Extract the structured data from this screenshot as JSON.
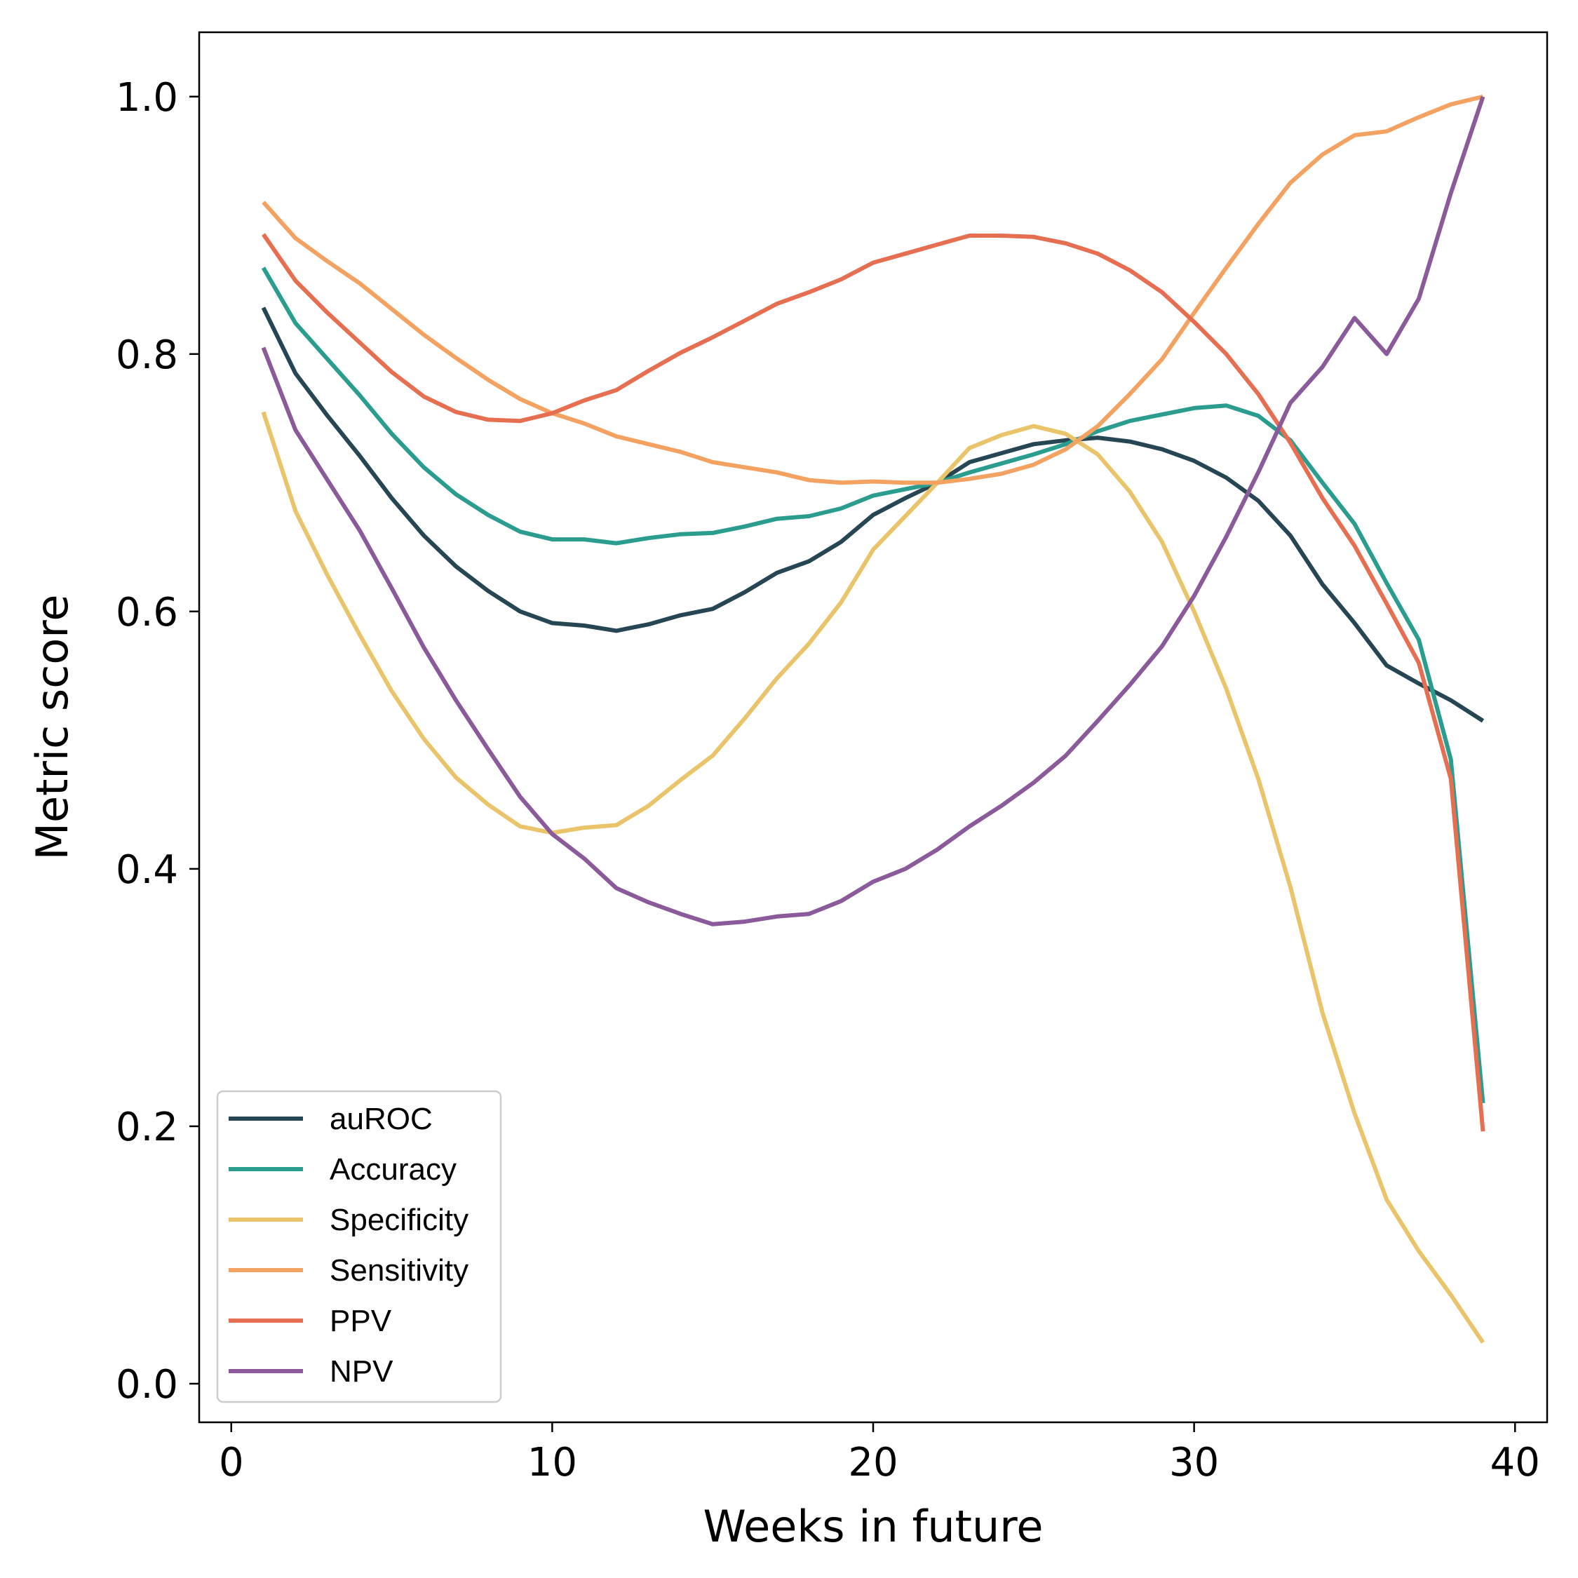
{
  "chart_data": {
    "type": "line",
    "title": "",
    "xlabel": "Weeks in future",
    "ylabel": "Metric score",
    "xlim": [
      -1,
      41
    ],
    "ylim": [
      -0.03,
      1.05
    ],
    "xticks": [
      0,
      10,
      20,
      30,
      40
    ],
    "xtick_labels": [
      "0",
      "10",
      "20",
      "30",
      "40"
    ],
    "yticks": [
      0.0,
      0.2,
      0.4,
      0.6,
      0.8,
      1.0
    ],
    "ytick_labels": [
      "0.0",
      "0.2",
      "0.4",
      "0.6",
      "0.8",
      "1.0"
    ],
    "grid": false,
    "legend_position": "lower-left",
    "x": [
      1,
      2,
      3,
      4,
      5,
      6,
      7,
      8,
      9,
      10,
      11,
      12,
      13,
      14,
      15,
      16,
      17,
      18,
      19,
      20,
      21,
      22,
      23,
      24,
      25,
      26,
      27,
      28,
      29,
      30,
      31,
      32,
      33,
      34,
      35,
      36,
      37,
      38,
      39
    ],
    "series": [
      {
        "name": "auROC",
        "color": "#264653",
        "values": [
          0.836,
          0.785,
          0.752,
          0.721,
          0.688,
          0.659,
          0.635,
          0.616,
          0.6,
          0.591,
          0.589,
          0.585,
          0.59,
          0.597,
          0.602,
          0.615,
          0.63,
          0.639,
          0.654,
          0.675,
          0.688,
          0.7,
          0.716,
          0.723,
          0.73,
          0.733,
          0.735,
          0.732,
          0.726,
          0.717,
          0.704,
          0.686,
          0.659,
          0.621,
          0.591,
          0.558,
          0.544,
          0.531,
          0.515
        ]
      },
      {
        "name": "Accuracy",
        "color": "#2a9d8f",
        "values": [
          0.867,
          0.824,
          0.796,
          0.768,
          0.738,
          0.712,
          0.691,
          0.675,
          0.662,
          0.656,
          0.656,
          0.653,
          0.657,
          0.66,
          0.661,
          0.666,
          0.672,
          0.674,
          0.68,
          0.69,
          0.695,
          0.7,
          0.708,
          0.715,
          0.722,
          0.73,
          0.74,
          0.748,
          0.753,
          0.758,
          0.76,
          0.752,
          0.733,
          0.7,
          0.668,
          0.622,
          0.578,
          0.485,
          0.218
        ]
      },
      {
        "name": "Specificity",
        "color": "#e9c46a",
        "values": [
          0.755,
          0.678,
          0.628,
          0.582,
          0.538,
          0.501,
          0.471,
          0.45,
          0.433,
          0.428,
          0.432,
          0.434,
          0.449,
          0.469,
          0.488,
          0.517,
          0.548,
          0.575,
          0.607,
          0.648,
          0.674,
          0.7,
          0.727,
          0.737,
          0.744,
          0.738,
          0.722,
          0.693,
          0.654,
          0.6,
          0.54,
          0.47,
          0.386,
          0.288,
          0.21,
          0.143,
          0.103,
          0.069,
          0.032
        ]
      },
      {
        "name": "Sensitivity",
        "color": "#f4a261",
        "values": [
          0.918,
          0.89,
          0.872,
          0.855,
          0.835,
          0.815,
          0.797,
          0.78,
          0.765,
          0.754,
          0.746,
          0.736,
          0.73,
          0.724,
          0.716,
          0.712,
          0.708,
          0.702,
          0.7,
          0.701,
          0.7,
          0.7,
          0.703,
          0.707,
          0.714,
          0.726,
          0.744,
          0.769,
          0.796,
          0.832,
          0.867,
          0.901,
          0.933,
          0.955,
          0.97,
          0.973,
          0.984,
          0.994,
          1.0
        ]
      },
      {
        "name": "PPV",
        "color": "#e76f51",
        "values": [
          0.893,
          0.857,
          0.832,
          0.809,
          0.786,
          0.767,
          0.755,
          0.749,
          0.748,
          0.754,
          0.764,
          0.772,
          0.787,
          0.801,
          0.813,
          0.826,
          0.839,
          0.848,
          0.858,
          0.871,
          0.878,
          0.885,
          0.892,
          0.892,
          0.891,
          0.886,
          0.878,
          0.865,
          0.848,
          0.825,
          0.8,
          0.769,
          0.731,
          0.688,
          0.651,
          0.606,
          0.56,
          0.47,
          0.196
        ]
      },
      {
        "name": "NPV",
        "color": "#8a5a9b",
        "values": [
          0.805,
          0.741,
          0.702,
          0.663,
          0.618,
          0.572,
          0.531,
          0.493,
          0.456,
          0.427,
          0.408,
          0.385,
          0.374,
          0.365,
          0.357,
          0.359,
          0.363,
          0.365,
          0.375,
          0.39,
          0.4,
          0.415,
          0.433,
          0.449,
          0.467,
          0.488,
          0.515,
          0.543,
          0.573,
          0.612,
          0.658,
          0.708,
          0.762,
          0.79,
          0.828,
          0.8,
          0.843,
          0.925,
          1.0
        ]
      }
    ]
  }
}
